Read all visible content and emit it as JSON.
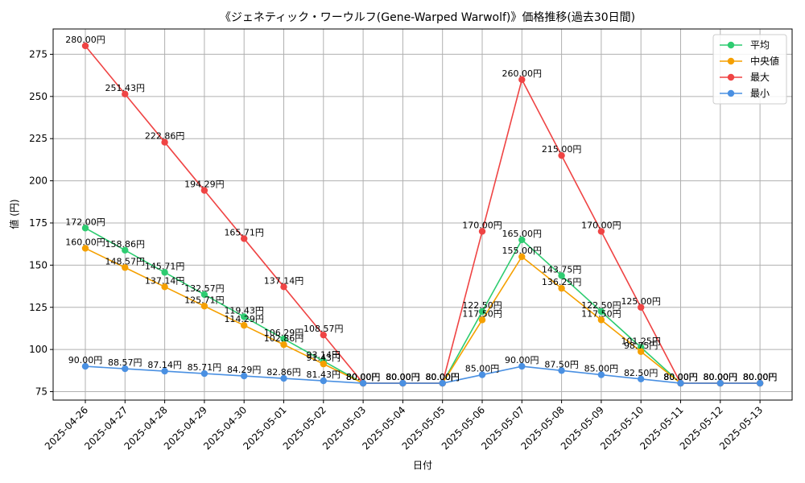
{
  "chart_data": {
    "type": "line",
    "title": "《ジェネティック・ワーウルフ(Gene-Warped Warwolf)》価格推移(過去30日間)",
    "xlabel": "日付",
    "ylabel": "値 (円)",
    "categories": [
      "2025-04-26",
      "2025-04-27",
      "2025-04-28",
      "2025-04-29",
      "2025-04-30",
      "2025-05-01",
      "2025-05-02",
      "2025-05-03",
      "2025-05-04",
      "2025-05-05",
      "2025-05-06",
      "2025-05-07",
      "2025-05-08",
      "2025-05-09",
      "2025-05-10",
      "2025-05-11",
      "2025-05-12",
      "2025-05-13"
    ],
    "ylim": [
      70,
      290
    ],
    "yticks": [
      75,
      100,
      125,
      150,
      175,
      200,
      225,
      250,
      275
    ],
    "grid": true,
    "legend_position": "top-right",
    "series": [
      {
        "name": "平均",
        "color": "#2ecc71",
        "values": [
          172.0,
          158.86,
          145.71,
          132.57,
          119.43,
          106.29,
          93.14,
          80.0,
          80.0,
          80.0,
          122.5,
          165.0,
          143.75,
          122.5,
          101.25,
          80.0,
          80.0,
          80.0
        ],
        "labels": [
          "172.00円",
          "158.86円",
          "145.71円",
          "132.57円",
          "119.43円",
          "106.29円",
          "93.14円",
          "80.00円",
          "80.00円",
          "80.00円",
          "122.50円",
          "165.00円",
          "143.75円",
          "122.50円",
          "101.25円",
          "80.00円",
          "80.00円",
          "80.00円"
        ]
      },
      {
        "name": "中央値",
        "color": "#f5a000",
        "values": [
          160.0,
          148.57,
          137.14,
          125.71,
          114.29,
          102.86,
          91.43,
          80.0,
          80.0,
          80.0,
          117.5,
          155.0,
          136.25,
          117.5,
          98.75,
          80.0,
          80.0,
          80.0
        ],
        "labels": [
          "160.00円",
          "148.57円",
          "137.14円",
          "125.71円",
          "114.29円",
          "102.86円",
          "91.43円",
          "80.00円",
          "80.00円",
          "80.00円",
          "117.50円",
          "155.00円",
          "136.25円",
          "117.50円",
          "98.75円",
          "80.00円",
          "80.00円",
          "80.00円"
        ]
      },
      {
        "name": "最大",
        "color": "#ef4444",
        "values": [
          280.0,
          251.43,
          222.86,
          194.29,
          165.71,
          137.14,
          108.57,
          80.0,
          80.0,
          80.0,
          170.0,
          260.0,
          215.0,
          170.0,
          125.0,
          80.0,
          80.0,
          80.0
        ],
        "labels": [
          "280.00円",
          "251.43円",
          "222.86円",
          "194.29円",
          "165.71円",
          "137.14円",
          "108.57円",
          "80.00円",
          "80.00円",
          "80.00円",
          "170.00円",
          "260.00円",
          "215.00円",
          "170.00円",
          "125.00円",
          "80.00円",
          "80.00円",
          "80.00円"
        ]
      },
      {
        "name": "最小",
        "color": "#4a90e2",
        "values": [
          90.0,
          88.57,
          87.14,
          85.71,
          84.29,
          82.86,
          81.43,
          80.0,
          80.0,
          80.0,
          85.0,
          90.0,
          87.5,
          85.0,
          82.5,
          80.0,
          80.0,
          80.0
        ],
        "labels": [
          "90.00円",
          "88.57円",
          "87.14円",
          "85.71円",
          "84.29円",
          "82.86円",
          "81.43円",
          "80.00円",
          "80.00円",
          "80.00円",
          "85.00円",
          "90.00円",
          "87.50円",
          "85.00円",
          "82.50円",
          "80.00円",
          "80.00円",
          "80.00円"
        ]
      }
    ]
  }
}
